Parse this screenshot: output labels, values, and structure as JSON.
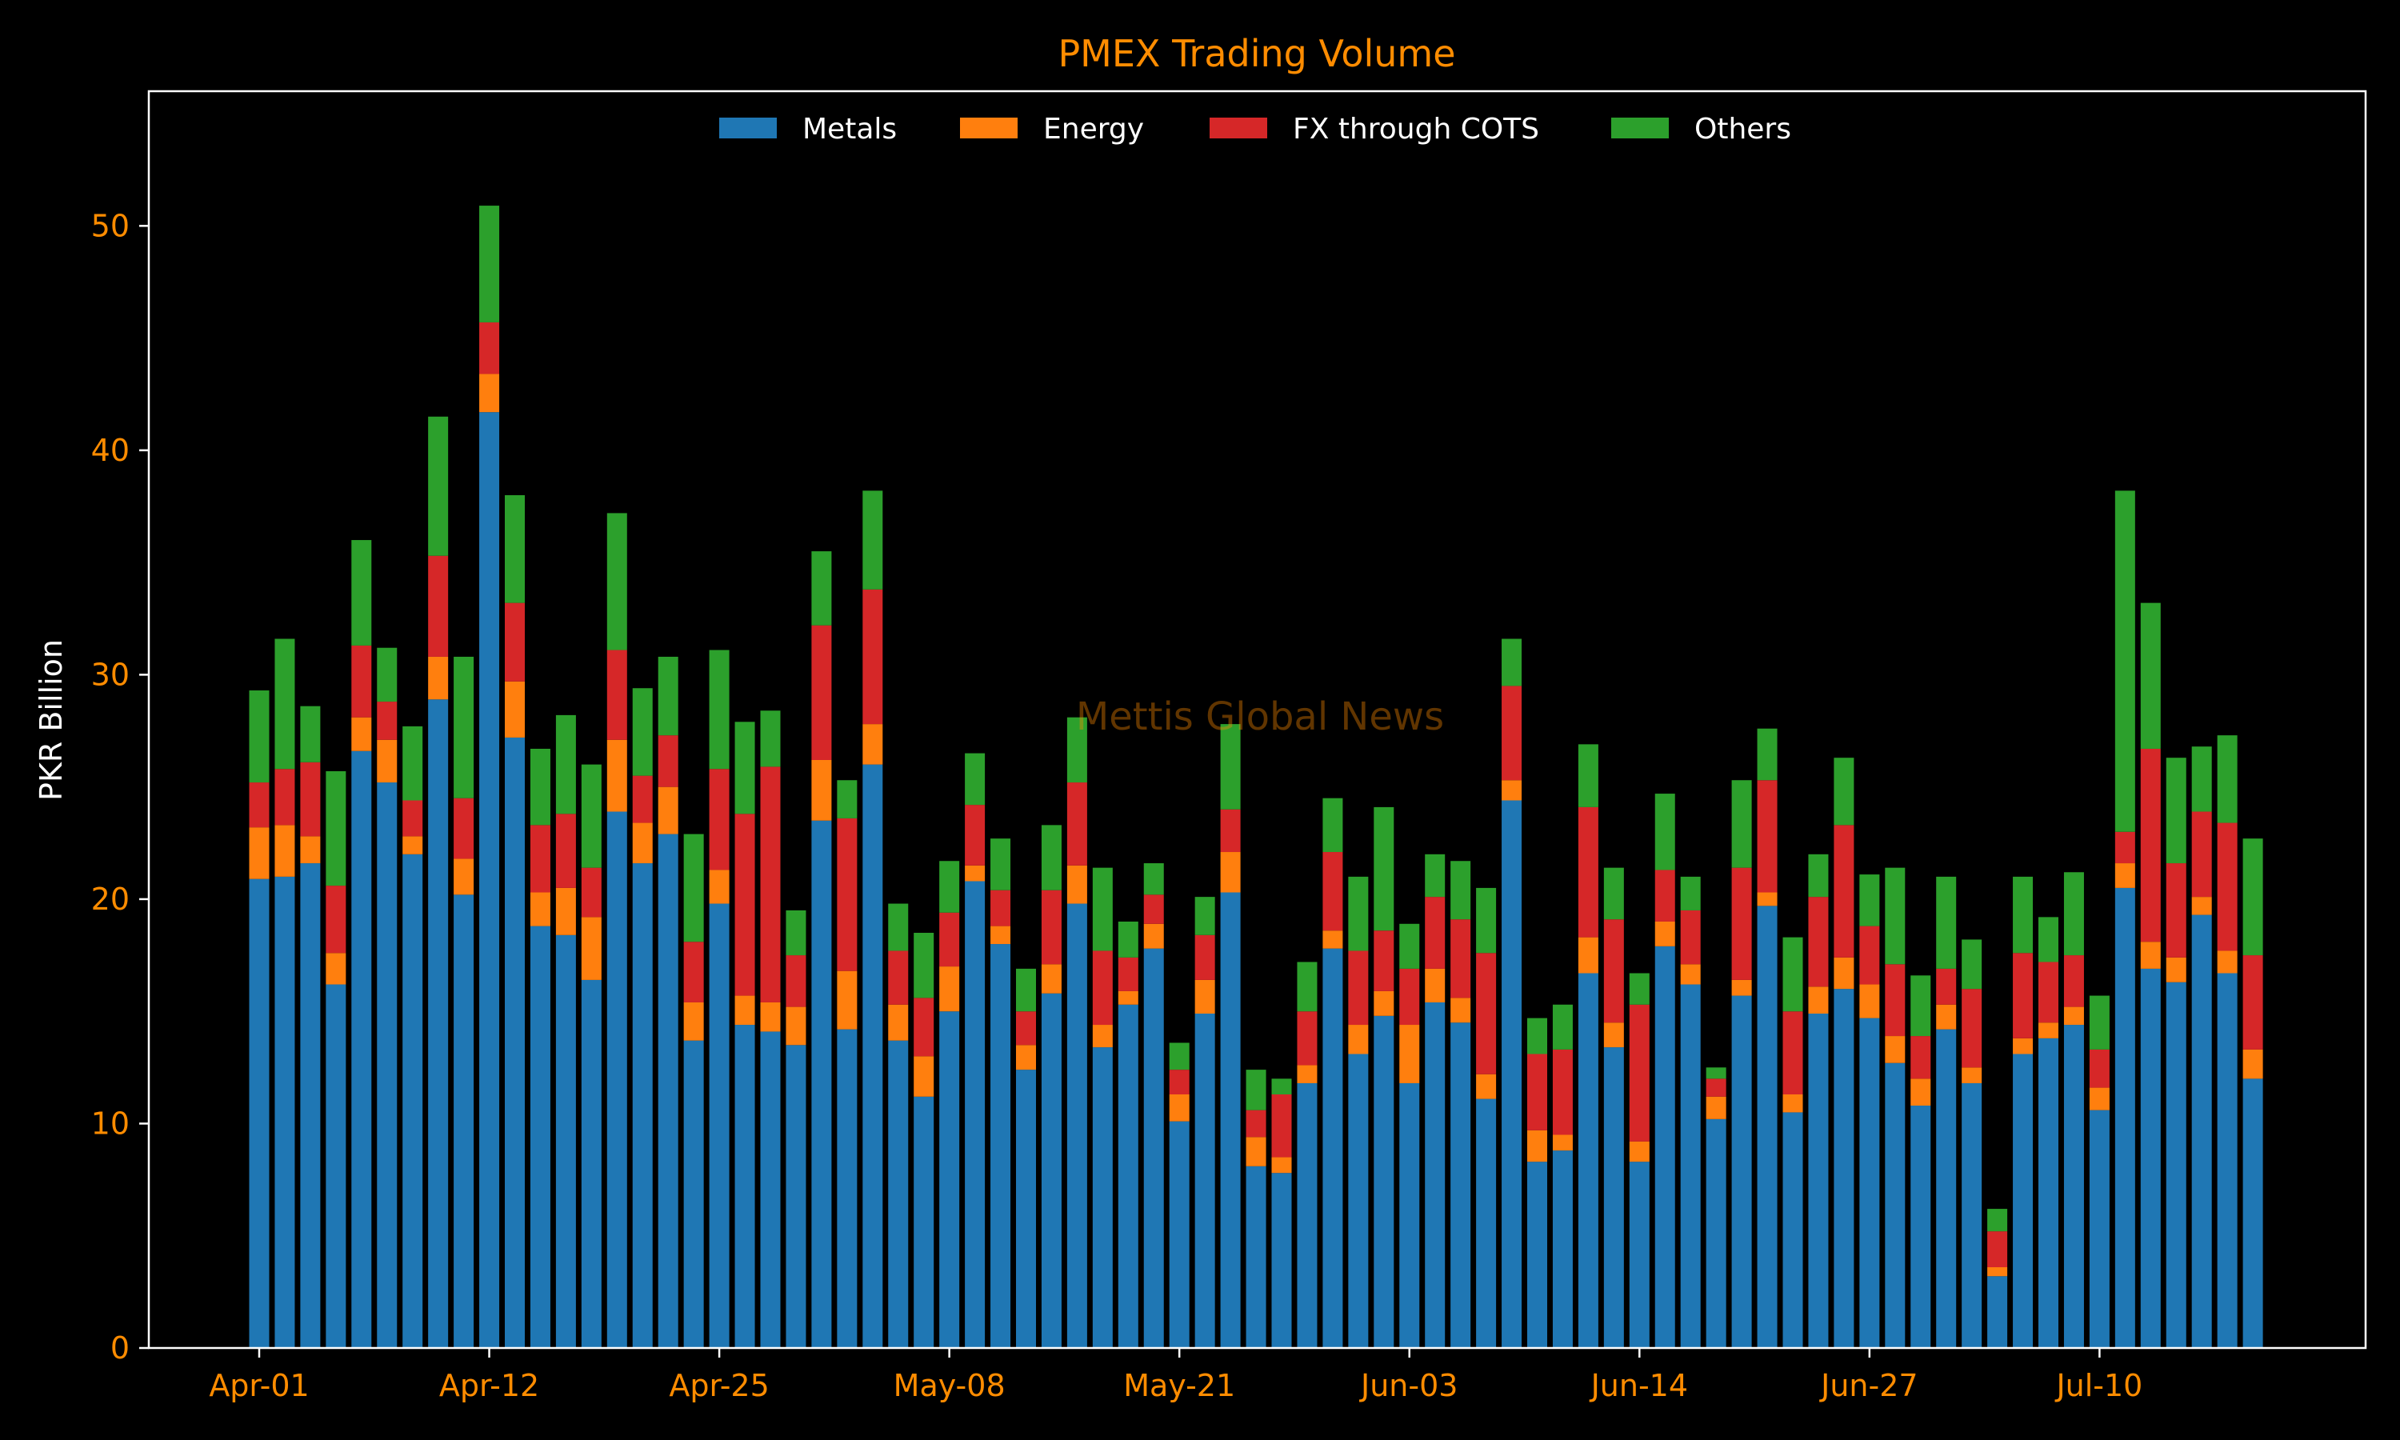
{
  "watermark": "Mettis Global News",
  "chart_data": {
    "type": "bar",
    "stacked": true,
    "title": "PMEX Trading Volume",
    "xlabel": "",
    "ylabel": "PKR Billion",
    "ylim": [
      0,
      56
    ],
    "yticks": [
      0,
      10,
      20,
      30,
      40,
      50
    ],
    "x_tick_labels": [
      "Apr-01",
      "Apr-12",
      "Apr-25",
      "May-08",
      "May-21",
      "Jun-03",
      "Jun-14",
      "Jun-27",
      "Jul-10"
    ],
    "x_tick_bar_index": [
      0,
      9,
      18,
      27,
      36,
      45,
      54,
      63,
      72
    ],
    "grid": false,
    "legend_position": "top-center",
    "colors": {
      "background": "#000000",
      "axes": "#ffffff",
      "text_accent": "#ff8c00"
    },
    "series": [
      {
        "name": "Metals",
        "color": "#1f77b4",
        "values": [
          20.9,
          21.0,
          21.6,
          16.2,
          26.6,
          25.2,
          22.0,
          28.9,
          20.2,
          41.7,
          27.2,
          18.8,
          18.4,
          16.4,
          23.9,
          21.6,
          22.9,
          13.7,
          19.8,
          14.4,
          14.1,
          13.5,
          23.5,
          14.2,
          26.0,
          13.7,
          11.2,
          15.0,
          20.8,
          18.0,
          12.4,
          15.8,
          19.8,
          13.4,
          15.3,
          17.8,
          10.1,
          14.9,
          20.3,
          8.1,
          7.8,
          11.8,
          17.8,
          13.1,
          14.8,
          11.8,
          15.4,
          14.5,
          11.1,
          24.4,
          8.3,
          8.8,
          16.7,
          13.4,
          8.3,
          17.9,
          16.2,
          10.2,
          15.7,
          19.7,
          10.5,
          14.9,
          16.0,
          14.7,
          12.7,
          10.8,
          14.2,
          11.8,
          3.2,
          13.1,
          13.8,
          14.4,
          10.6,
          20.5,
          16.9,
          16.3,
          19.3,
          16.7,
          12.0
        ]
      },
      {
        "name": "Energy",
        "color": "#ff7f0e",
        "values": [
          2.3,
          2.3,
          1.2,
          1.4,
          1.5,
          1.9,
          0.8,
          1.9,
          1.6,
          1.7,
          2.5,
          1.5,
          2.1,
          2.8,
          3.2,
          1.8,
          2.1,
          1.7,
          1.5,
          1.3,
          1.3,
          1.7,
          2.7,
          2.6,
          1.8,
          1.6,
          1.8,
          2.0,
          0.7,
          0.8,
          1.1,
          1.3,
          1.7,
          1.0,
          0.6,
          1.1,
          1.2,
          1.5,
          1.8,
          1.3,
          0.7,
          0.8,
          0.8,
          1.3,
          1.1,
          2.6,
          1.5,
          1.1,
          1.1,
          0.9,
          1.4,
          0.7,
          1.6,
          1.1,
          0.9,
          1.1,
          0.9,
          1.0,
          0.7,
          0.6,
          0.8,
          1.2,
          1.4,
          1.5,
          1.2,
          1.2,
          1.1,
          0.7,
          0.4,
          0.7,
          0.7,
          0.8,
          1.0,
          1.1,
          1.2,
          1.1,
          0.8,
          1.0,
          1.3
        ]
      },
      {
        "name": "FX through COTS",
        "color": "#d62728",
        "values": [
          2.0,
          2.5,
          3.3,
          3.0,
          3.2,
          1.7,
          1.6,
          4.5,
          2.7,
          2.3,
          3.5,
          3.0,
          3.3,
          2.2,
          4.0,
          2.1,
          2.3,
          2.7,
          4.5,
          8.1,
          10.5,
          2.3,
          6.0,
          6.8,
          6.0,
          2.4,
          2.6,
          2.4,
          2.7,
          1.6,
          1.5,
          3.3,
          3.7,
          3.3,
          1.5,
          1.3,
          1.1,
          2.0,
          1.9,
          1.2,
          2.8,
          2.4,
          3.5,
          3.3,
          2.7,
          2.5,
          3.2,
          3.5,
          5.4,
          4.2,
          3.4,
          3.8,
          5.8,
          4.6,
          6.1,
          2.3,
          2.4,
          0.8,
          5.0,
          5.0,
          3.7,
          4.0,
          5.9,
          2.6,
          3.2,
          1.9,
          1.6,
          3.5,
          1.6,
          3.8,
          2.7,
          2.3,
          1.7,
          1.4,
          8.6,
          4.2,
          3.8,
          5.7,
          4.2
        ]
      },
      {
        "name": "Others",
        "color": "#2ca02c",
        "values": [
          4.1,
          5.8,
          2.5,
          5.1,
          4.7,
          2.4,
          3.3,
          6.2,
          6.3,
          5.2,
          4.8,
          3.4,
          4.4,
          4.6,
          6.1,
          3.9,
          3.5,
          4.8,
          5.3,
          4.1,
          2.5,
          2.0,
          3.3,
          1.7,
          4.4,
          2.1,
          2.9,
          2.3,
          2.3,
          2.3,
          1.9,
          2.9,
          2.9,
          3.7,
          1.6,
          1.4,
          1.2,
          1.7,
          3.8,
          1.8,
          0.7,
          2.2,
          2.4,
          3.3,
          5.5,
          2.0,
          1.9,
          2.6,
          2.9,
          2.1,
          1.6,
          2.0,
          2.8,
          2.3,
          1.4,
          3.4,
          1.5,
          0.5,
          3.9,
          2.3,
          3.3,
          1.9,
          3.0,
          2.3,
          4.3,
          2.7,
          4.1,
          2.2,
          1.0,
          3.4,
          2.0,
          3.7,
          2.4,
          15.2,
          6.5,
          4.7,
          2.9,
          3.9,
          5.2
        ]
      }
    ]
  }
}
